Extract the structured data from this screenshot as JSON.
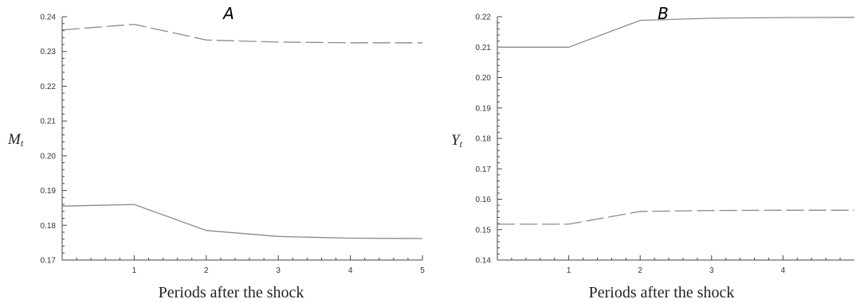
{
  "chart_data": [
    {
      "type": "line",
      "title": "A",
      "xlabel": "Periods after the shock",
      "ylabel": "M",
      "ylabel_subscript": "t",
      "xlim": [
        0,
        5
      ],
      "ylim": [
        0.17,
        0.24
      ],
      "xticks": [
        1,
        2,
        3,
        4,
        5
      ],
      "yticks": [
        0.17,
        0.18,
        0.19,
        0.2,
        0.21,
        0.22,
        0.23,
        0.24
      ],
      "ytick_labels": [
        "0.17",
        "0.18",
        "0.19",
        "0.20",
        "0.21",
        "0.22",
        "0.23",
        "0.24"
      ],
      "series": [
        {
          "style": "dashed",
          "x": [
            0,
            1,
            2,
            3,
            4,
            5
          ],
          "values": [
            0.2362,
            0.2378,
            0.2333,
            0.2327,
            0.2325,
            0.2325
          ]
        },
        {
          "style": "solid",
          "x": [
            0,
            1,
            2,
            3,
            4,
            5
          ],
          "values": [
            0.1855,
            0.186,
            0.1785,
            0.1768,
            0.1763,
            0.1762
          ]
        }
      ]
    },
    {
      "type": "line",
      "title": "B",
      "xlabel": "Periods after the shock",
      "ylabel": "Y",
      "ylabel_subscript": "t",
      "xlim": [
        0,
        5
      ],
      "ylim": [
        0.14,
        0.22
      ],
      "xticks": [
        1,
        2,
        3,
        4
      ],
      "yticks": [
        0.14,
        0.15,
        0.16,
        0.17,
        0.18,
        0.19,
        0.2,
        0.21,
        0.22
      ],
      "ytick_labels": [
        "0.14",
        "0.15",
        "0.16",
        "0.17",
        "0.18",
        "0.19",
        "0.20",
        "0.21",
        "0.22"
      ],
      "series": [
        {
          "style": "solid",
          "x": [
            0,
            1,
            2,
            3,
            4,
            5
          ],
          "values": [
            0.21,
            0.21,
            0.2188,
            0.2195,
            0.2197,
            0.2198
          ]
        },
        {
          "style": "dashed",
          "x": [
            0,
            1,
            2,
            3,
            4,
            5
          ],
          "values": [
            0.1518,
            0.1518,
            0.156,
            0.1563,
            0.1564,
            0.1564
          ]
        }
      ]
    }
  ]
}
